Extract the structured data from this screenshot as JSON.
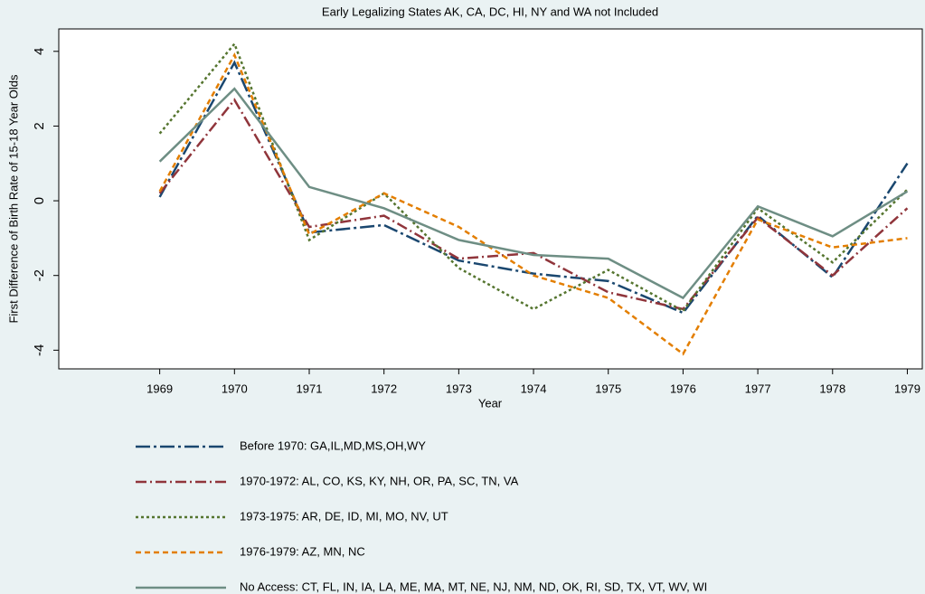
{
  "chart_data": {
    "type": "line",
    "title": "Early Legalizing States AK, CA, DC, HI, NY and WA not Included",
    "x_label": "Year",
    "y_label": "First Difference of Birth Rate of 15-18 Year Olds",
    "x": [
      1969,
      1970,
      1971,
      1972,
      1973,
      1974,
      1975,
      1976,
      1977,
      1978,
      1979
    ],
    "xlim": [
      1967.65,
      1979.2
    ],
    "xticks": [
      1969,
      1970,
      1971,
      1972,
      1973,
      1974,
      1975,
      1976,
      1977,
      1978,
      1979
    ],
    "ylim": [
      -4.5,
      4.6
    ],
    "yticks": [
      -4,
      -2,
      0,
      2,
      4
    ],
    "grid": false,
    "legend": "bottom",
    "series": [
      {
        "name": "Before 1970: GA,IL,MD,MS,OH,WY",
        "color": "#1a476f",
        "dash": "16 4 3 4",
        "values": [
          0.1,
          3.7,
          -0.85,
          -0.65,
          -1.6,
          -1.95,
          -2.15,
          -3.0,
          -0.4,
          -2.05,
          1.0
        ]
      },
      {
        "name": "1970-1972: AL, CO, KS, KY, NH, OR, PA, SC, TN, VA",
        "color": "#90353b",
        "dash": "12 4 2 4",
        "values": [
          0.2,
          2.7,
          -0.7,
          -0.4,
          -1.55,
          -1.4,
          -2.45,
          -2.9,
          -0.45,
          -2.0,
          -0.2
        ]
      },
      {
        "name": "1973-1975: AR, DE, ID, MI, MO, NV, UT",
        "color": "#55752f",
        "dash": "3 3",
        "values": [
          1.8,
          4.2,
          -1.05,
          0.2,
          -1.8,
          -2.9,
          -1.85,
          -2.95,
          -0.2,
          -1.65,
          0.3
        ]
      },
      {
        "name": "1976-1979: AZ, MN, NC",
        "color": "#e37e00",
        "dash": "6 4",
        "values": [
          0.25,
          3.9,
          -0.9,
          0.2,
          -0.7,
          -2.0,
          -2.6,
          -4.1,
          -0.5,
          -1.25,
          -1.0
        ]
      },
      {
        "name": "No Access: CT, FL, IN, IA, LA, ME, MA, MT, NE, NJ, NM, ND, OK, RI, SD, TX, VT, WV, WI",
        "color": "#6e8e84",
        "dash": "none",
        "values": [
          1.05,
          3.0,
          0.37,
          -0.2,
          -1.05,
          -1.45,
          -1.55,
          -2.6,
          -0.15,
          -0.95,
          0.25
        ]
      }
    ]
  }
}
